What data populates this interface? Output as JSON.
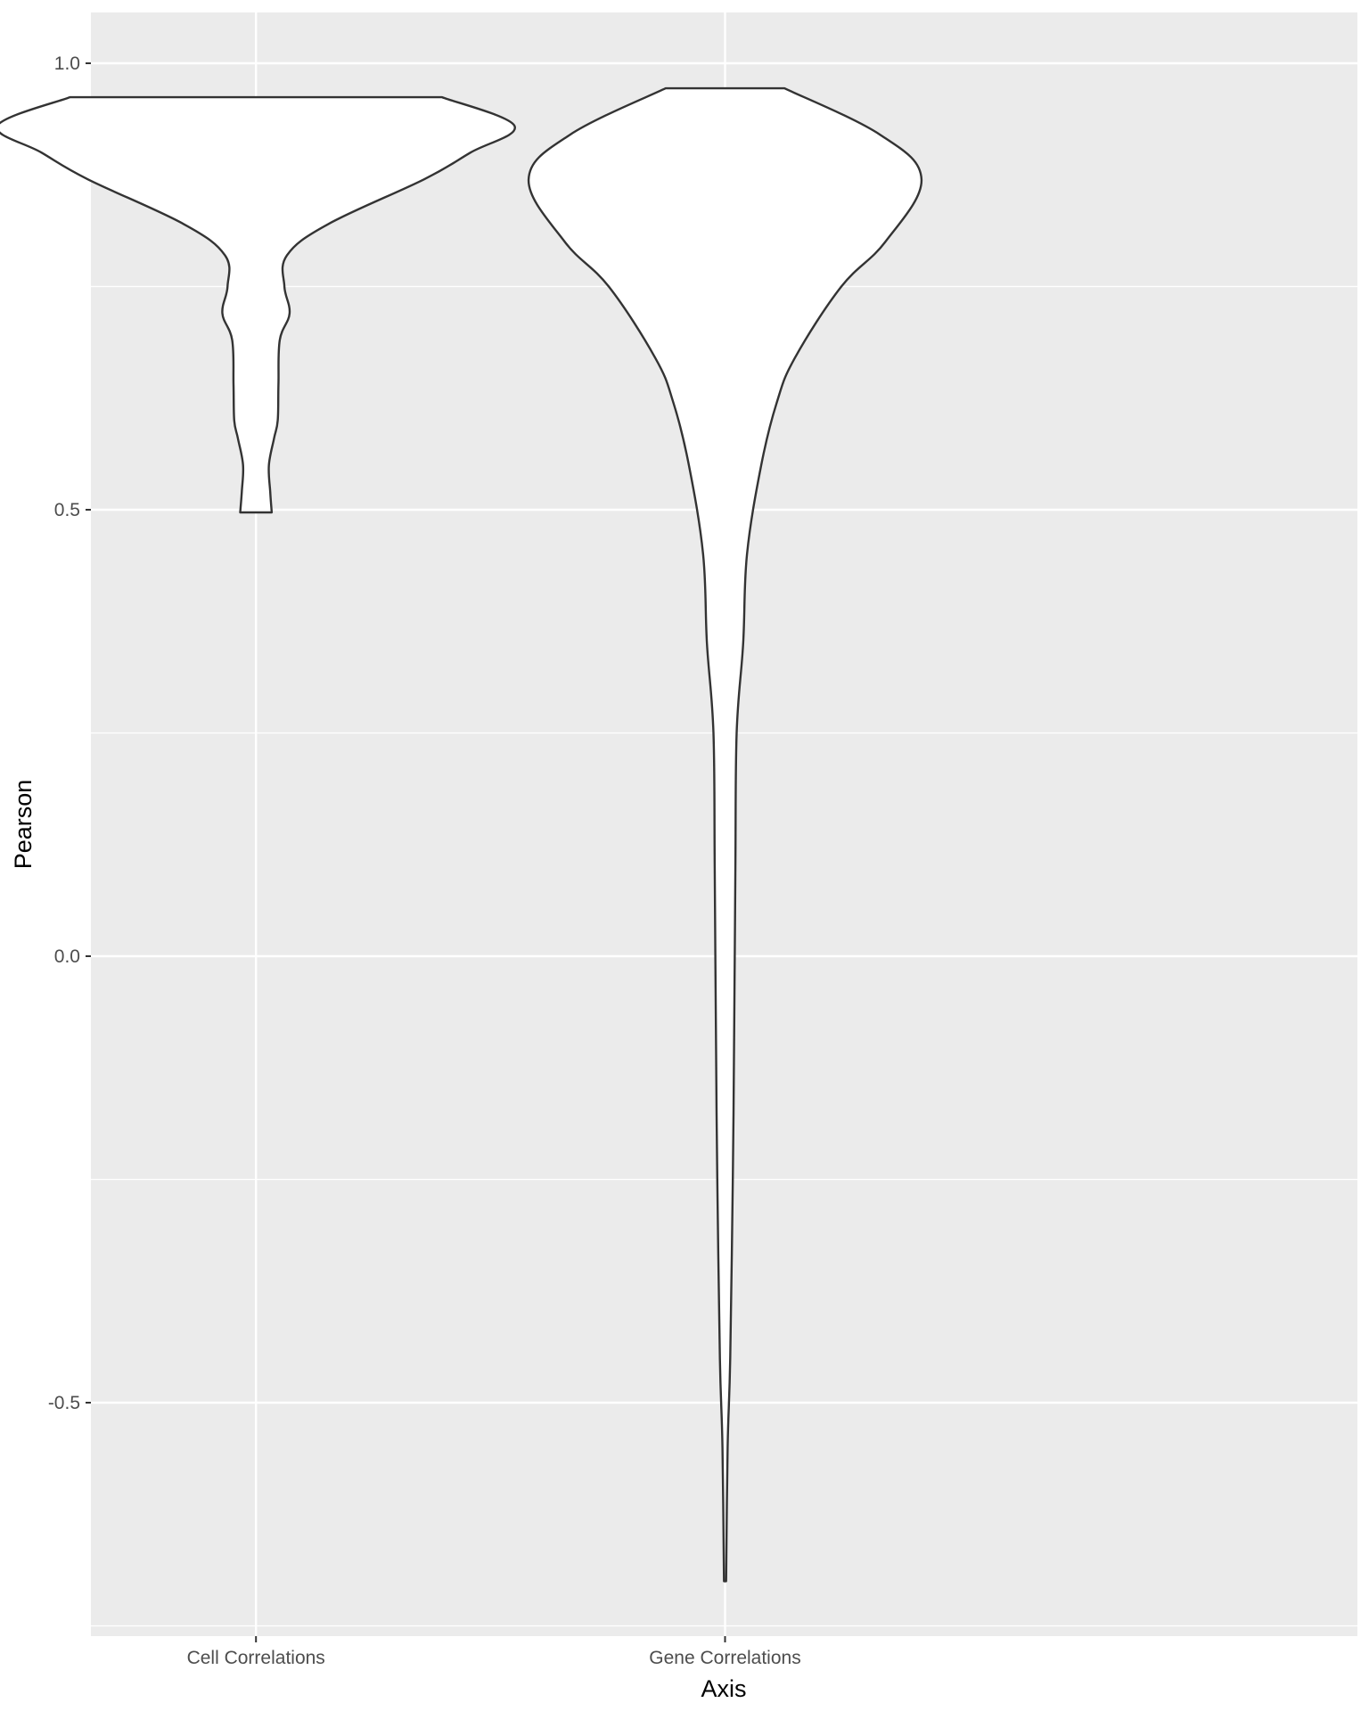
{
  "chart_data": {
    "type": "violin",
    "xlabel": "Axis",
    "ylabel": "Pearson",
    "categories": [
      "Cell Correlations",
      "Gene Correlations"
    ],
    "y_ticks": [
      {
        "value": 1.0,
        "label": "1.0"
      },
      {
        "value": 0.5,
        "label": "0.5"
      },
      {
        "value": 0.0,
        "label": "0.0"
      },
      {
        "value": -0.5,
        "label": "-0.5"
      }
    ],
    "ylim": [
      -0.76,
      1.056
    ],
    "grid": true,
    "background": "#ebebeb",
    "grid_color": "#ffffff",
    "violin_fill": "#ffffff",
    "violin_outline": "#333333",
    "series": [
      {
        "category": "Cell Correlations",
        "y_min": 0.497,
        "y_max": 0.962,
        "density_profile": [
          {
            "y": 0.497,
            "w": 0.061
          },
          {
            "y": 0.52,
            "w": 0.055
          },
          {
            "y": 0.55,
            "w": 0.05
          },
          {
            "y": 0.58,
            "w": 0.07
          },
          {
            "y": 0.6,
            "w": 0.084
          },
          {
            "y": 0.64,
            "w": 0.087
          },
          {
            "y": 0.69,
            "w": 0.092
          },
          {
            "y": 0.72,
            "w": 0.13
          },
          {
            "y": 0.75,
            "w": 0.11
          },
          {
            "y": 0.785,
            "w": 0.12
          },
          {
            "y": 0.82,
            "w": 0.28
          },
          {
            "y": 0.87,
            "w": 0.65
          },
          {
            "y": 0.9,
            "w": 0.83
          },
          {
            "y": 0.93,
            "w": 1.0
          },
          {
            "y": 0.962,
            "w": 0.72
          }
        ]
      },
      {
        "category": "Gene Correlations",
        "y_min": -0.7,
        "y_max": 0.972,
        "density_profile": [
          {
            "y": -0.7,
            "w": 0.004
          },
          {
            "y": -0.55,
            "w": 0.01
          },
          {
            "y": -0.45,
            "w": 0.02
          },
          {
            "y": -0.25,
            "w": 0.03
          },
          {
            "y": -0.1,
            "w": 0.035
          },
          {
            "y": 0.1,
            "w": 0.04
          },
          {
            "y": 0.25,
            "w": 0.045
          },
          {
            "y": 0.35,
            "w": 0.07
          },
          {
            "y": 0.45,
            "w": 0.085
          },
          {
            "y": 0.55,
            "w": 0.14
          },
          {
            "y": 0.62,
            "w": 0.2
          },
          {
            "y": 0.67,
            "w": 0.27
          },
          {
            "y": 0.75,
            "w": 0.45
          },
          {
            "y": 0.8,
            "w": 0.62
          },
          {
            "y": 0.87,
            "w": 0.76
          },
          {
            "y": 0.92,
            "w": 0.6
          },
          {
            "y": 0.972,
            "w": 0.23
          }
        ]
      }
    ]
  }
}
